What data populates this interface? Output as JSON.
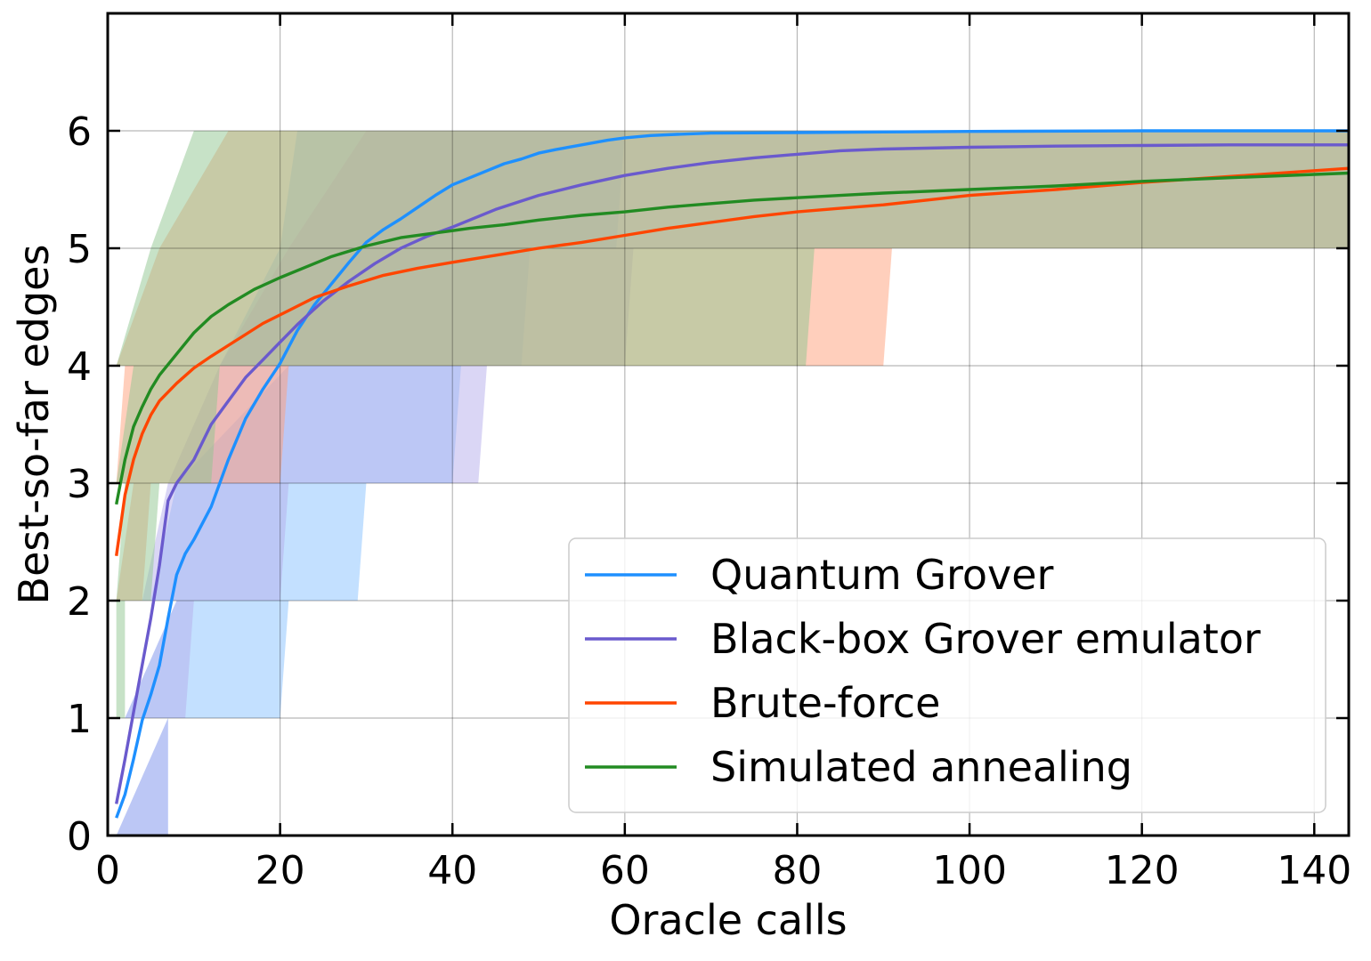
{
  "chart_data": {
    "type": "line",
    "title": "",
    "xlabel": "Oracle calls",
    "ylabel": "Best-so-far edges",
    "xlim": [
      0,
      144
    ],
    "ylim": [
      0,
      7
    ],
    "xticks": [
      "0",
      "20",
      "40",
      "60",
      "80",
      "100",
      "120",
      "140"
    ],
    "yticks": [
      "0",
      "1",
      "2",
      "3",
      "4",
      "5",
      "6"
    ],
    "grid": true,
    "legend_position": "lower-right",
    "series": [
      {
        "name": "Quantum Grover",
        "color": "#1e90ff",
        "band_color": "#87c1ff",
        "x": [
          1,
          2,
          3,
          4,
          5,
          6,
          7,
          8,
          9,
          10,
          12,
          14,
          16,
          18,
          20,
          22,
          24,
          26,
          28,
          30,
          32,
          34,
          36,
          38,
          40,
          42,
          44,
          46,
          48,
          50,
          52,
          55,
          58,
          60,
          63,
          66,
          70,
          80,
          90,
          100,
          120,
          144
        ],
        "y": [
          0.15,
          0.35,
          0.65,
          0.98,
          1.2,
          1.45,
          1.85,
          2.22,
          2.4,
          2.52,
          2.8,
          3.2,
          3.55,
          3.8,
          4.02,
          4.3,
          4.52,
          4.7,
          4.88,
          5.05,
          5.16,
          5.25,
          5.35,
          5.45,
          5.54,
          5.6,
          5.66,
          5.72,
          5.76,
          5.81,
          5.84,
          5.88,
          5.92,
          5.94,
          5.96,
          5.97,
          5.98,
          5.985,
          5.99,
          5.995,
          6.0,
          6.0
        ],
        "band": [
          {
            "lower": 0,
            "upper": 1,
            "from": [
              1,
              7
            ],
            "to": [
              7,
              7
            ]
          },
          {
            "lower": 1,
            "upper": 2,
            "from": [
              2,
              8
            ],
            "to": [
              20,
              21
            ]
          },
          {
            "lower": 2,
            "upper": 3,
            "from": [
              5,
              8
            ],
            "to": [
              29,
              30
            ]
          },
          {
            "lower": 3,
            "upper": 4,
            "from": [
              8,
              21
            ],
            "to": [
              40,
              41
            ]
          },
          {
            "lower": 4,
            "upper": 5,
            "from": [
              13,
              20
            ],
            "to": [
              48,
              49
            ]
          },
          {
            "lower": 5,
            "upper": 6,
            "from": [
              20,
              22
            ],
            "to": [
              59,
              60
            ]
          }
        ]
      },
      {
        "name": "Black-box Grover emulator",
        "color": "#6a5acd",
        "band_color": "#b5adec",
        "x": [
          1,
          2,
          3,
          4,
          5,
          6,
          7,
          8,
          10,
          12,
          14,
          16,
          18,
          20,
          22,
          25,
          28,
          31,
          34,
          37,
          40,
          45,
          50,
          55,
          60,
          65,
          70,
          75,
          80,
          85,
          90,
          100,
          110,
          120,
          130,
          144
        ],
        "y": [
          0.27,
          0.65,
          1.05,
          1.45,
          1.85,
          2.3,
          2.85,
          3.0,
          3.2,
          3.5,
          3.7,
          3.9,
          4.05,
          4.2,
          4.35,
          4.55,
          4.72,
          4.87,
          5.0,
          5.1,
          5.18,
          5.33,
          5.45,
          5.54,
          5.62,
          5.68,
          5.73,
          5.77,
          5.8,
          5.83,
          5.845,
          5.86,
          5.87,
          5.875,
          5.88,
          5.88
        ],
        "band": [
          {
            "lower": 0,
            "upper": 1,
            "from": [
              1,
              7
            ],
            "to": [
              7,
              7
            ]
          },
          {
            "lower": 1,
            "upper": 2,
            "from": [
              2,
              8
            ],
            "to": [
              9,
              10
            ]
          },
          {
            "lower": 2,
            "upper": 3,
            "from": [
              4,
              7
            ],
            "to": [
              20,
              21
            ]
          },
          {
            "lower": 3,
            "upper": 4,
            "from": [
              7,
              13
            ],
            "to": [
              43,
              44
            ]
          },
          {
            "lower": 4,
            "upper": 5,
            "from": [
              13,
              21
            ],
            "to": [
              60,
              61
            ]
          },
          {
            "lower": 5,
            "upper": 6,
            "from": [
              21,
              30
            ],
            "to": [
              144,
              144
            ]
          }
        ]
      },
      {
        "name": "Brute-force",
        "color": "#ff4500",
        "band_color": "#ffa07a",
        "x": [
          1,
          2,
          3,
          4,
          5,
          6,
          8,
          10,
          12,
          15,
          18,
          21,
          24,
          28,
          32,
          36,
          40,
          45,
          50,
          55,
          60,
          65,
          70,
          75,
          80,
          85,
          90,
          95,
          100,
          110,
          120,
          130,
          144
        ],
        "y": [
          2.38,
          2.9,
          3.2,
          3.42,
          3.58,
          3.7,
          3.85,
          3.98,
          4.08,
          4.22,
          4.36,
          4.47,
          4.58,
          4.68,
          4.77,
          4.83,
          4.88,
          4.94,
          5.0,
          5.05,
          5.11,
          5.17,
          5.22,
          5.27,
          5.31,
          5.34,
          5.37,
          5.41,
          5.45,
          5.5,
          5.56,
          5.61,
          5.68
        ],
        "band": [
          {
            "lower": 2,
            "upper": 3,
            "from": [
              1,
              3
            ],
            "to": [
              4,
              5
            ]
          },
          {
            "lower": 3,
            "upper": 4,
            "from": [
              1,
              2
            ],
            "to": [
              20,
              21
            ]
          },
          {
            "lower": 4,
            "upper": 5,
            "from": [
              1,
              6
            ],
            "to": [
              90,
              91
            ]
          },
          {
            "lower": 5,
            "upper": 6,
            "from": [
              6,
              14
            ],
            "to": [
              144,
              144
            ]
          }
        ]
      },
      {
        "name": "Simulated annealing",
        "color": "#228b22",
        "band_color": "#8fc68f",
        "x": [
          1,
          2,
          3,
          4,
          5,
          6,
          8,
          10,
          12,
          14,
          17,
          20,
          23,
          26,
          30,
          34,
          38,
          42,
          46,
          50,
          55,
          60,
          65,
          70,
          75,
          80,
          85,
          90,
          100,
          110,
          120,
          130,
          144
        ],
        "y": [
          2.82,
          3.2,
          3.48,
          3.65,
          3.8,
          3.92,
          4.1,
          4.28,
          4.42,
          4.52,
          4.65,
          4.75,
          4.84,
          4.93,
          5.02,
          5.09,
          5.13,
          5.17,
          5.2,
          5.24,
          5.28,
          5.31,
          5.35,
          5.38,
          5.41,
          5.43,
          5.45,
          5.47,
          5.5,
          5.53,
          5.57,
          5.6,
          5.64
        ],
        "band": [
          {
            "lower": 1,
            "upper": 2,
            "from": [
              1,
              1
            ],
            "to": [
              2,
              2
            ]
          },
          {
            "lower": 2,
            "upper": 3,
            "from": [
              1,
              2
            ],
            "to": [
              5,
              6
            ]
          },
          {
            "lower": 3,
            "upper": 4,
            "from": [
              1,
              3
            ],
            "to": [
              12,
              13
            ]
          },
          {
            "lower": 4,
            "upper": 5,
            "from": [
              1,
              5
            ],
            "to": [
              81,
              82
            ]
          },
          {
            "lower": 5,
            "upper": 6,
            "from": [
              5,
              10
            ],
            "to": [
              144,
              144
            ]
          }
        ]
      }
    ]
  }
}
